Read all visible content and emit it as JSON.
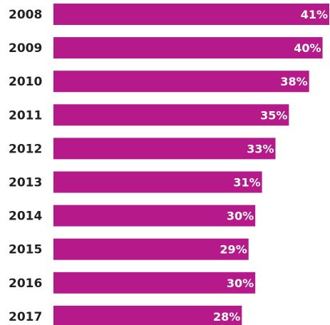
{
  "chart_data": {
    "type": "bar",
    "orientation": "horizontal",
    "categories": [
      "2008",
      "2009",
      "2010",
      "2011",
      "2012",
      "2013",
      "2014",
      "2015",
      "2016",
      "2017"
    ],
    "values": [
      41,
      40,
      38,
      35,
      33,
      31,
      30,
      29,
      30,
      28
    ],
    "value_labels": [
      "41%",
      "40%",
      "38%",
      "35%",
      "33%",
      "31%",
      "30%",
      "29%",
      "30%",
      "28%"
    ],
    "xlim": [
      0,
      41
    ],
    "title": "",
    "xlabel": "",
    "ylabel": "",
    "grid": false,
    "legend": "none",
    "bar_color": "#b5198a"
  }
}
